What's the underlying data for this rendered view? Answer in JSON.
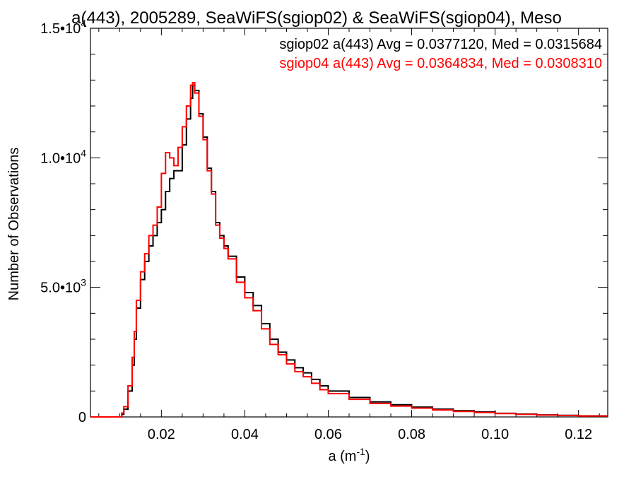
{
  "chart_data": {
    "type": "line",
    "title": "a(443), 2005289, SeaWiFS(sgiop02) & SeaWiFS(sgiop04), Meso",
    "xlabel": "a (m",
    "xlabel_superscript": "-1",
    "xlabel_suffix": ")",
    "ylabel": "Number of Observations",
    "xlim": [
      0.003,
      0.127
    ],
    "ylim": [
      0,
      15000
    ],
    "x_ticks": [
      0.02,
      0.04,
      0.06,
      0.08,
      0.1,
      0.12
    ],
    "x_tick_labels": [
      "0.02",
      "0.04",
      "0.06",
      "0.08",
      "0.10",
      "0.12"
    ],
    "y_ticks": [
      {
        "value": 0,
        "mantissa": "0",
        "exponent": ""
      },
      {
        "value": 5000,
        "mantissa": "5.0•10",
        "exponent": "3"
      },
      {
        "value": 10000,
        "mantissa": "1.0•10",
        "exponent": "4"
      },
      {
        "value": 15000,
        "mantissa": "1.5•10",
        "exponent": "4"
      }
    ],
    "legend": [
      {
        "text": "sgiop02 a(443) Avg = 0.0377120, Med = 0.0315684",
        "color": "#000000"
      },
      {
        "text": "sgiop04 a(443) Avg = 0.0364834, Med = 0.0308310",
        "color": "#ff0000"
      }
    ],
    "legend_placement": "top-right",
    "grid": false,
    "series": [
      {
        "name": "sgiop02",
        "color": "#000000",
        "x": [
          0.003,
          0.006,
          0.009,
          0.0105,
          0.011,
          0.012,
          0.013,
          0.0135,
          0.014,
          0.015,
          0.016,
          0.017,
          0.018,
          0.019,
          0.02,
          0.021,
          0.022,
          0.023,
          0.024,
          0.025,
          0.026,
          0.027,
          0.0275,
          0.028,
          0.029,
          0.03,
          0.031,
          0.032,
          0.033,
          0.034,
          0.035,
          0.036,
          0.038,
          0.04,
          0.042,
          0.044,
          0.046,
          0.048,
          0.05,
          0.052,
          0.054,
          0.056,
          0.058,
          0.06,
          0.065,
          0.07,
          0.075,
          0.08,
          0.085,
          0.09,
          0.095,
          0.1,
          0.105,
          0.11,
          0.115,
          0.12,
          0.127
        ],
        "y": [
          0,
          0,
          0,
          100,
          300,
          1000,
          2000,
          3000,
          4200,
          5300,
          6000,
          6600,
          7000,
          7500,
          8000,
          8700,
          9200,
          9500,
          9500,
          10500,
          11500,
          12300,
          12800,
          12600,
          11700,
          10800,
          9600,
          8700,
          7500,
          7000,
          6600,
          6200,
          5400,
          4800,
          4300,
          3600,
          3000,
          2500,
          2200,
          1900,
          1700,
          1450,
          1200,
          1000,
          750,
          580,
          470,
          380,
          300,
          240,
          190,
          140,
          110,
          80,
          60,
          40,
          30
        ]
      },
      {
        "name": "sgiop04",
        "color": "#ff0000",
        "x": [
          0.003,
          0.006,
          0.009,
          0.0105,
          0.011,
          0.012,
          0.013,
          0.0135,
          0.014,
          0.015,
          0.016,
          0.017,
          0.018,
          0.019,
          0.02,
          0.021,
          0.022,
          0.023,
          0.024,
          0.025,
          0.026,
          0.027,
          0.0275,
          0.028,
          0.029,
          0.03,
          0.031,
          0.032,
          0.033,
          0.034,
          0.035,
          0.036,
          0.038,
          0.04,
          0.042,
          0.044,
          0.046,
          0.048,
          0.05,
          0.052,
          0.054,
          0.056,
          0.058,
          0.06,
          0.065,
          0.07,
          0.075,
          0.08,
          0.085,
          0.09,
          0.095,
          0.1,
          0.105,
          0.11,
          0.115,
          0.12,
          0.127
        ],
        "y": [
          0,
          0,
          0,
          150,
          400,
          1200,
          2300,
          3300,
          4500,
          5600,
          6300,
          7000,
          7400,
          8100,
          9400,
          10200,
          10000,
          9700,
          10400,
          11200,
          12000,
          12800,
          12900,
          12500,
          11600,
          10700,
          9500,
          8600,
          7400,
          6900,
          6500,
          6100,
          5200,
          4600,
          4100,
          3400,
          2800,
          2400,
          2050,
          1750,
          1550,
          1300,
          1050,
          900,
          680,
          520,
          420,
          340,
          270,
          210,
          170,
          130,
          100,
          70,
          55,
          35,
          25
        ]
      }
    ]
  }
}
